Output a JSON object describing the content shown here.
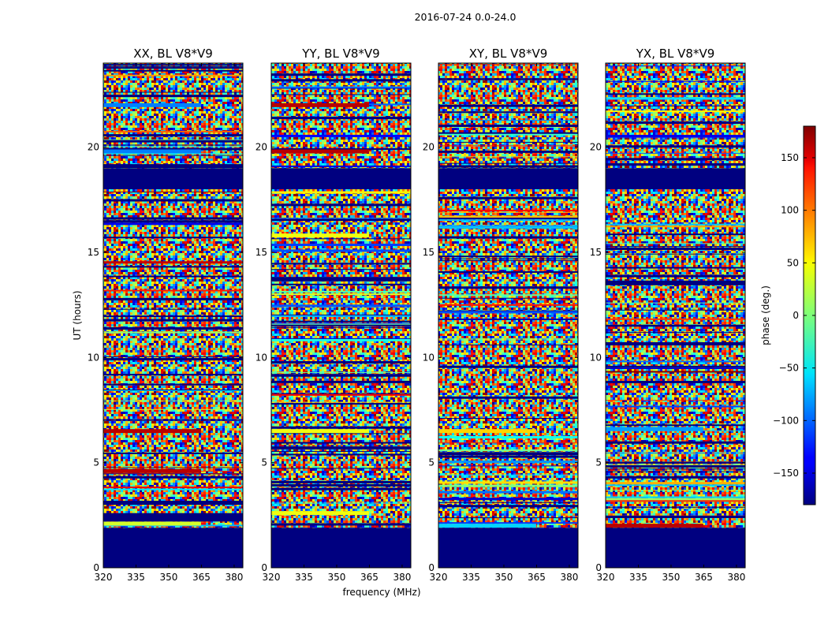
{
  "figure": {
    "suptitle": "2016-07-24 0.0-24.0"
  },
  "chart_data": [
    {
      "type": "heatmap",
      "title": "XX, BL V8*V9",
      "xlabel": "",
      "ylabel": "UT (hours)",
      "xlim": [
        320,
        384
      ],
      "ylim": [
        0,
        24
      ],
      "xticks": [
        320,
        335,
        350,
        365,
        380
      ],
      "yticks": [
        0,
        5,
        10,
        15,
        20
      ],
      "value_units": "phase (deg.)",
      "constant_phase_bands": [
        {
          "ut": [
            0.0,
            1.9
          ],
          "phase": -180
        },
        {
          "ut": [
            2.2,
            2.6
          ],
          "phase": -180
        },
        {
          "ut": [
            18.0,
            19.0
          ],
          "phase": -180
        }
      ],
      "notable_rows": [
        {
          "ut": 2.1,
          "phase": 30
        },
        {
          "ut": 4.6,
          "phase": 160
        },
        {
          "ut": 6.5,
          "phase": 160
        },
        {
          "ut": 19.8,
          "phase": -90
        },
        {
          "ut": 22.0,
          "phase": -90
        }
      ]
    },
    {
      "type": "heatmap",
      "title": "YY, BL V8*V9",
      "xlabel": "frequency (MHz)",
      "ylabel": "",
      "xlim": [
        320,
        384
      ],
      "ylim": [
        0,
        24
      ],
      "xticks": [
        320,
        335,
        350,
        365,
        380
      ],
      "yticks": [
        0,
        5,
        10,
        15,
        20
      ],
      "value_units": "phase (deg.)",
      "constant_phase_bands": [
        {
          "ut": [
            0.0,
            1.9
          ],
          "phase": -180
        },
        {
          "ut": [
            18.0,
            19.0
          ],
          "phase": -180
        }
      ],
      "notable_rows": [
        {
          "ut": 2.6,
          "phase": 40
        },
        {
          "ut": 6.5,
          "phase": 40
        },
        {
          "ut": 15.8,
          "phase": 40
        },
        {
          "ut": 19.8,
          "phase": 160
        },
        {
          "ut": 22.0,
          "phase": 160
        }
      ]
    },
    {
      "type": "heatmap",
      "title": "XY, BL V8*V9",
      "xlabel": "",
      "ylabel": "",
      "xlim": [
        320,
        384
      ],
      "ylim": [
        0,
        24
      ],
      "xticks": [
        320,
        335,
        350,
        365,
        380
      ],
      "yticks": [
        0,
        5,
        10,
        15,
        20
      ],
      "value_units": "phase (deg.)",
      "constant_phase_bands": [
        {
          "ut": [
            0.0,
            1.9
          ],
          "phase": -180
        },
        {
          "ut": [
            18.0,
            19.0
          ],
          "phase": -180
        }
      ],
      "notable_rows": [
        {
          "ut": 2.0,
          "phase": -60
        },
        {
          "ut": 6.5,
          "phase": 60
        }
      ]
    },
    {
      "type": "heatmap",
      "title": "YX, BL V8*V9",
      "xlabel": "",
      "ylabel": "",
      "xlim": [
        320,
        384
      ],
      "ylim": [
        0,
        24
      ],
      "xticks": [
        320,
        335,
        350,
        365,
        380
      ],
      "yticks": [
        0,
        5,
        10,
        15,
        20
      ],
      "value_units": "phase (deg.)",
      "constant_phase_bands": [
        {
          "ut": [
            0.0,
            1.9
          ],
          "phase": -180
        },
        {
          "ut": [
            18.0,
            19.0
          ],
          "phase": -180
        }
      ],
      "notable_rows": [
        {
          "ut": 2.0,
          "phase": 160
        },
        {
          "ut": 6.6,
          "phase": -80
        }
      ]
    }
  ],
  "colorbar": {
    "label": "phase (deg.)",
    "range": [
      -180,
      180
    ],
    "ticks": [
      -150,
      -100,
      -50,
      0,
      50,
      100,
      150
    ],
    "tick_labels": [
      "−150",
      "−100",
      "−50",
      "0",
      "50",
      "100",
      "150"
    ],
    "colormap": "jet"
  }
}
